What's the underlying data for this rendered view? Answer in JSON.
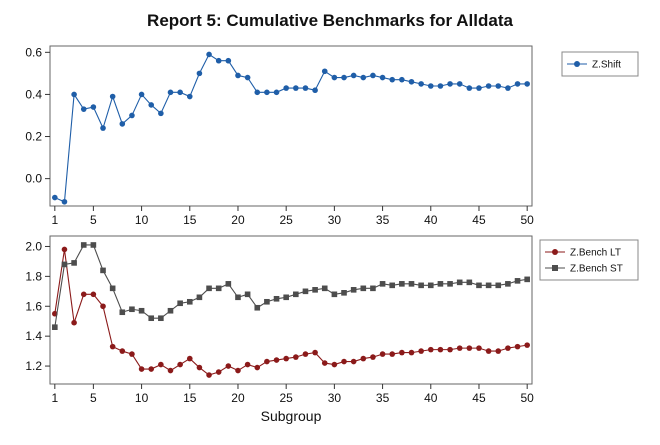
{
  "chart_data": [
    {
      "type": "line",
      "title": "Report 5: Cumulative Benchmarks for Alldata",
      "xlabel": "",
      "ylabel": "",
      "xlim": [
        0.5,
        50.5
      ],
      "ylim": [
        -0.13,
        0.63
      ],
      "x_ticks": [
        1,
        5,
        10,
        15,
        20,
        25,
        30,
        35,
        40,
        45,
        50
      ],
      "y_ticks": [
        0.0,
        0.2,
        0.4,
        0.6
      ],
      "y_tick_labels": [
        "0.0",
        "0.2",
        "0.4",
        "0.6"
      ],
      "legend_position": "top-right",
      "x": [
        1,
        2,
        3,
        4,
        5,
        6,
        7,
        8,
        9,
        10,
        11,
        12,
        13,
        14,
        15,
        16,
        17,
        18,
        19,
        20,
        21,
        22,
        23,
        24,
        25,
        26,
        27,
        28,
        29,
        30,
        31,
        32,
        33,
        34,
        35,
        36,
        37,
        38,
        39,
        40,
        41,
        42,
        43,
        44,
        45,
        46,
        47,
        48,
        49,
        50
      ],
      "series": [
        {
          "name": "Z.Shift",
          "color": "#1f5ea8",
          "marker": "circle",
          "values": [
            -0.09,
            -0.11,
            0.4,
            0.33,
            0.34,
            0.24,
            0.39,
            0.26,
            0.3,
            0.4,
            0.35,
            0.31,
            0.41,
            0.41,
            0.39,
            0.5,
            0.59,
            0.56,
            0.56,
            0.49,
            0.48,
            0.41,
            0.41,
            0.41,
            0.43,
            0.43,
            0.43,
            0.42,
            0.51,
            0.48,
            0.48,
            0.49,
            0.48,
            0.49,
            0.48,
            0.47,
            0.47,
            0.46,
            0.45,
            0.44,
            0.44,
            0.45,
            0.45,
            0.43,
            0.43,
            0.44,
            0.44,
            0.43,
            0.45,
            0.45
          ]
        }
      ]
    },
    {
      "type": "line",
      "title": "",
      "xlabel": "Subgroup",
      "ylabel": "",
      "xlim": [
        0.5,
        50.5
      ],
      "ylim": [
        1.08,
        2.07
      ],
      "x_ticks": [
        1,
        5,
        10,
        15,
        20,
        25,
        30,
        35,
        40,
        45,
        50
      ],
      "y_ticks": [
        1.2,
        1.4,
        1.6,
        1.8,
        2.0
      ],
      "y_tick_labels": [
        "1.2",
        "1.4",
        "1.6",
        "1.8",
        "2.0"
      ],
      "legend_position": "top-right",
      "x": [
        1,
        2,
        3,
        4,
        5,
        6,
        7,
        8,
        9,
        10,
        11,
        12,
        13,
        14,
        15,
        16,
        17,
        18,
        19,
        20,
        21,
        22,
        23,
        24,
        25,
        26,
        27,
        28,
        29,
        30,
        31,
        32,
        33,
        34,
        35,
        36,
        37,
        38,
        39,
        40,
        41,
        42,
        43,
        44,
        45,
        46,
        47,
        48,
        49,
        50
      ],
      "series": [
        {
          "name": "Z.Bench LT",
          "color": "#8b1a1a",
          "marker": "circle",
          "values": [
            1.55,
            1.98,
            1.49,
            1.68,
            1.68,
            1.6,
            1.33,
            1.3,
            1.28,
            1.18,
            1.18,
            1.21,
            1.17,
            1.21,
            1.25,
            1.19,
            1.14,
            1.16,
            1.2,
            1.17,
            1.21,
            1.19,
            1.23,
            1.24,
            1.25,
            1.26,
            1.28,
            1.29,
            1.22,
            1.21,
            1.23,
            1.23,
            1.25,
            1.26,
            1.28,
            1.28,
            1.29,
            1.29,
            1.3,
            1.31,
            1.31,
            1.31,
            1.32,
            1.32,
            1.32,
            1.3,
            1.3,
            1.32,
            1.33,
            1.34
          ]
        },
        {
          "name": "Z.Bench ST",
          "color": "#4d4d4d",
          "marker": "square",
          "values": [
            1.46,
            1.88,
            1.89,
            2.01,
            2.01,
            1.84,
            1.72,
            1.56,
            1.58,
            1.57,
            1.52,
            1.52,
            1.57,
            1.62,
            1.63,
            1.66,
            1.72,
            1.72,
            1.75,
            1.66,
            1.68,
            1.59,
            1.63,
            1.65,
            1.66,
            1.68,
            1.7,
            1.71,
            1.72,
            1.68,
            1.69,
            1.71,
            1.72,
            1.72,
            1.75,
            1.74,
            1.75,
            1.75,
            1.74,
            1.74,
            1.75,
            1.75,
            1.76,
            1.76,
            1.74,
            1.74,
            1.74,
            1.75,
            1.77,
            1.78
          ]
        }
      ]
    }
  ]
}
